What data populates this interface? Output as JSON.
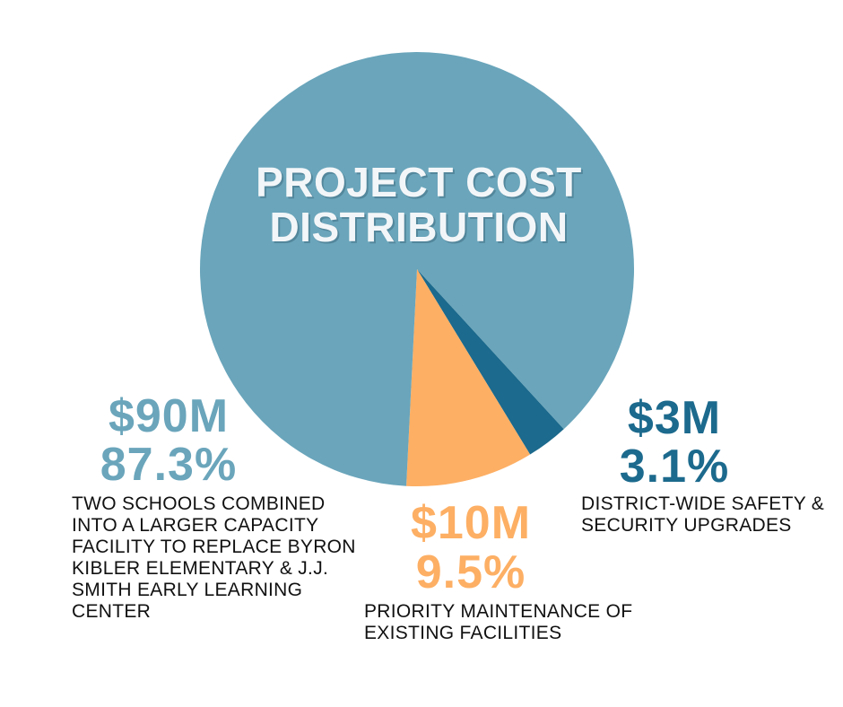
{
  "chart_data": {
    "type": "pie",
    "title": "PROJECT COST DISTRIBUTION",
    "series": [
      {
        "amount_label": "$90M",
        "percent_label": "87.3%",
        "percent": 87.3,
        "description": "TWO SCHOOLS COMBINED INTO A LARGER CAPACITY FACILITY TO REPLACE BYRON KIBLER ELEMENTARY & J.J. SMITH EARLY LEARNING CENTER",
        "color": "#6aa5bb"
      },
      {
        "amount_label": "$10M",
        "percent_label": "9.5%",
        "percent": 9.5,
        "description": "PRIORITY MAINTENANCE OF EXISTING FACILITIES",
        "color": "#fdaf64"
      },
      {
        "amount_label": "$3M",
        "percent_label": "3.1%",
        "percent": 3.1,
        "description": "DISTRICT-WIDE SAFETY & SECURITY UPGRADES",
        "color": "#1c6a8d"
      }
    ]
  }
}
